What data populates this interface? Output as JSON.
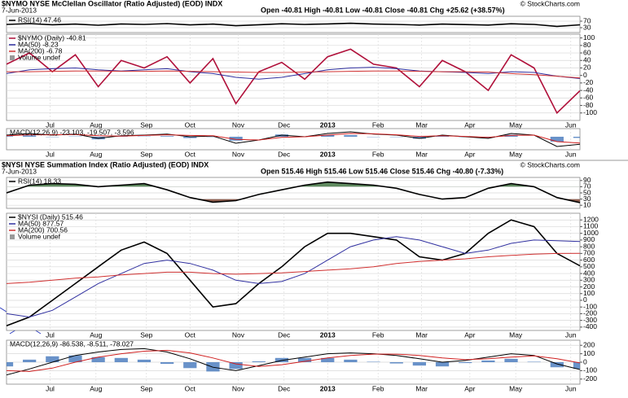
{
  "chart_data": [
    {
      "type": "line",
      "title": "$NYMO NYSE McClellan Oscillator (Ratio Adjusted) (EOD) INDX",
      "date": "7-Jun-2013",
      "ohlc": "Open -40.81 High -40.81 Low -40.81 Close -40.81 Chg +25.62 (+38.57%)",
      "source": "© StockCharts.com",
      "x": [
        0,
        1,
        2,
        3,
        4,
        5,
        6,
        7,
        8,
        9,
        10,
        11,
        12,
        13,
        14,
        15,
        16,
        17,
        18,
        19,
        20,
        21,
        22,
        23,
        24,
        25
      ],
      "xlim": [
        0,
        25
      ],
      "ylim": [
        0,
        100
      ],
      "yticks": [
        70,
        30
      ],
      "grid": true,
      "series": [
        {
          "name": "RSI(14) 47.46",
          "color": "#000000",
          "values": [
            50,
            55,
            48,
            52,
            45,
            53,
            50,
            55,
            47,
            52,
            42,
            48,
            54,
            50,
            53,
            57,
            52,
            50,
            46,
            52,
            49,
            46,
            54,
            50,
            38,
            47.46
          ]
        }
      ]
    },
    {
      "type": "line",
      "x": [
        0,
        1,
        2,
        3,
        4,
        5,
        6,
        7,
        8,
        9,
        10,
        11,
        12,
        13,
        14,
        15,
        16,
        17,
        18,
        19,
        20,
        21,
        22,
        23,
        24,
        25
      ],
      "xlim": [
        0,
        25
      ],
      "ylim": [
        -120,
        110
      ],
      "yticks": [
        100,
        80,
        60,
        40,
        20,
        0,
        -20,
        -40,
        -60,
        -80,
        -100
      ],
      "grid": true,
      "xticks": [
        {
          "value": 1.9,
          "label": "Jul"
        },
        {
          "value": 3.9,
          "label": "Aug"
        },
        {
          "value": 6.1,
          "label": "Sep"
        },
        {
          "value": 8,
          "label": "Oct"
        },
        {
          "value": 10.1,
          "label": "Nov"
        },
        {
          "value": 12.1,
          "label": "Dec"
        },
        {
          "value": 14,
          "label": "2013"
        },
        {
          "value": 16.2,
          "label": "Feb"
        },
        {
          "value": 18.1,
          "label": "Mar"
        },
        {
          "value": 20.2,
          "label": "Apr"
        },
        {
          "value": 22.2,
          "label": "May"
        },
        {
          "value": 24.6,
          "label": "Jun"
        }
      ],
      "series": [
        {
          "name": "$NYMO (Daily) -40.81",
          "color": "#b0103a",
          "values": [
            30,
            60,
            10,
            55,
            -30,
            40,
            20,
            50,
            -20,
            45,
            -75,
            10,
            35,
            -10,
            50,
            70,
            30,
            20,
            -30,
            40,
            10,
            -40,
            55,
            20,
            -100,
            -40.81
          ]
        },
        {
          "name": "MA(50) -8.23",
          "color": "#3030a0",
          "values": [
            5,
            15,
            18,
            20,
            15,
            12,
            15,
            18,
            10,
            5,
            -5,
            -10,
            -5,
            5,
            15,
            20,
            22,
            18,
            12,
            10,
            8,
            5,
            10,
            8,
            -2,
            -8.23
          ]
        },
        {
          "name": "MA(200) -6.78",
          "color": "#d03030",
          "values": [
            10,
            10,
            11,
            12,
            12,
            11,
            11,
            12,
            11,
            10,
            9,
            8,
            8,
            9,
            10,
            11,
            12,
            12,
            11,
            10,
            10,
            9,
            5,
            2,
            -2,
            -6.78
          ]
        }
      ],
      "volume_label": "Volume undef"
    },
    {
      "type": "line",
      "x": [
        0,
        1,
        2,
        3,
        4,
        5,
        6,
        7,
        8,
        9,
        10,
        11,
        12,
        13,
        14,
        15,
        16,
        17,
        18,
        19,
        20,
        21,
        22,
        23,
        24,
        25
      ],
      "xlim": [
        0,
        25
      ],
      "ylim": [
        -40,
        25
      ],
      "grid": true,
      "legend": "MACD(12,26,9) -23.103, -19.507, -3.596",
      "xticks": [
        {
          "value": 1.9,
          "label": "Jul"
        },
        {
          "value": 3.9,
          "label": "Aug"
        },
        {
          "value": 6.1,
          "label": "Sep"
        },
        {
          "value": 8,
          "label": "Oct"
        },
        {
          "value": 10.1,
          "label": "Nov"
        },
        {
          "value": 12.1,
          "label": "Dec"
        },
        {
          "value": 14,
          "label": "2013"
        },
        {
          "value": 16.2,
          "label": "Feb"
        },
        {
          "value": 18.1,
          "label": "Mar"
        },
        {
          "value": 20.2,
          "label": "Apr"
        },
        {
          "value": 22.2,
          "label": "May"
        },
        {
          "value": 24.6,
          "label": "Jun"
        }
      ],
      "series": [
        {
          "color": "#4f7fbf",
          "style": "bar",
          "values": [
            2,
            4,
            -1,
            1,
            -8,
            1,
            1,
            2,
            -4,
            -1,
            -12,
            0,
            7,
            0,
            5,
            5,
            -1,
            -1,
            -6,
            2,
            -1,
            -3,
            6,
            0,
            -15,
            -3.596
          ]
        },
        {
          "color": "#000000",
          "values": [
            5,
            10,
            5,
            8,
            -5,
            3,
            5,
            8,
            0,
            2,
            -20,
            -10,
            5,
            0,
            10,
            15,
            8,
            5,
            -5,
            5,
            0,
            -5,
            10,
            5,
            -30,
            -23.103
          ]
        },
        {
          "color": "#d02020",
          "values": [
            3,
            6,
            6,
            7,
            3,
            2,
            4,
            6,
            4,
            3,
            -8,
            -10,
            -2,
            0,
            5,
            10,
            9,
            6,
            1,
            3,
            1,
            -2,
            4,
            5,
            -15,
            -19.507
          ]
        }
      ]
    },
    {
      "type": "line",
      "title": "$NYSI NYSE Summation Index (Ratio Adjusted) (EOD) INDX",
      "date": "7-Jun-2013",
      "ohlc": "Open 515.46 High 515.46 Low 515.46 Close 515.46 Chg -40.80 (-7.33%)",
      "source": "© StockCharts.com",
      "x": [
        0,
        1,
        2,
        3,
        4,
        5,
        6,
        7,
        8,
        9,
        10,
        11,
        12,
        13,
        14,
        15,
        16,
        17,
        18,
        19,
        20,
        21,
        22,
        23,
        24,
        25
      ],
      "xlim": [
        0,
        25
      ],
      "ylim": [
        0,
        100
      ],
      "yticks": [
        90,
        70,
        50,
        30,
        10
      ],
      "grid": true,
      "fill_colors": [
        "#5f8a5f",
        "#8f5f50"
      ],
      "series": [
        {
          "name": "RSI(14) 18.33",
          "color": "#000000",
          "values": [
            50,
            75,
            80,
            78,
            70,
            75,
            80,
            60,
            35,
            20,
            25,
            45,
            60,
            75,
            85,
            80,
            75,
            65,
            45,
            30,
            35,
            65,
            80,
            70,
            35,
            18.33
          ]
        }
      ]
    },
    {
      "type": "line",
      "x": [
        0,
        1,
        2,
        3,
        4,
        5,
        6,
        7,
        8,
        9,
        10,
        11,
        12,
        13,
        14,
        15,
        16,
        17,
        18,
        19,
        20,
        21,
        22,
        23,
        24,
        25
      ],
      "xlim": [
        0,
        25
      ],
      "ylim": [
        -450,
        1300
      ],
      "yticks": [
        1200,
        1100,
        1000,
        900,
        800,
        700,
        600,
        500,
        400,
        300,
        200,
        100,
        0,
        -100,
        -200,
        -300,
        -400
      ],
      "grid": true,
      "xticks": [
        {
          "value": 1.9,
          "label": "Jul"
        },
        {
          "value": 3.9,
          "label": "Aug"
        },
        {
          "value": 6.1,
          "label": "Sep"
        },
        {
          "value": 8,
          "label": "Oct"
        },
        {
          "value": 10.1,
          "label": "Nov"
        },
        {
          "value": 12.1,
          "label": "Dec"
        },
        {
          "value": 14,
          "label": "2013"
        },
        {
          "value": 16.2,
          "label": "Feb"
        },
        {
          "value": 18.1,
          "label": "Mar"
        },
        {
          "value": 20.2,
          "label": "Apr"
        },
        {
          "value": 22.2,
          "label": "May"
        },
        {
          "value": 24.6,
          "label": "Jun"
        }
      ],
      "series": [
        {
          "name": "$NYSI (Daily) 515.46",
          "color": "#000000",
          "values": [
            -380,
            -250,
            0,
            250,
            500,
            750,
            870,
            700,
            300,
            -100,
            -50,
            250,
            500,
            800,
            1000,
            1000,
            950,
            900,
            650,
            600,
            700,
            1000,
            1200,
            1100,
            700,
            515.46
          ]
        },
        {
          "name": "MA(50) 877.57",
          "color": "#3030a0",
          "values": [
            -200,
            -250,
            -150,
            50,
            250,
            400,
            550,
            600,
            550,
            450,
            300,
            250,
            280,
            400,
            600,
            800,
            900,
            950,
            900,
            800,
            700,
            750,
            850,
            900,
            890,
            877.57
          ]
        },
        {
          "name": "MA(200) 700.56",
          "color": "#d03030",
          "values": [
            250,
            270,
            300,
            330,
            350,
            380,
            400,
            420,
            420,
            400,
            390,
            400,
            410,
            430,
            450,
            470,
            500,
            550,
            580,
            600,
            620,
            650,
            670,
            690,
            700,
            700.56
          ]
        }
      ],
      "volume_label": "Volume undef"
    },
    {
      "type": "line",
      "x": [
        0,
        1,
        2,
        3,
        4,
        5,
        6,
        7,
        8,
        9,
        10,
        11,
        12,
        13,
        14,
        15,
        16,
        17,
        18,
        19,
        20,
        21,
        22,
        23,
        24,
        25
      ],
      "xlim": [
        0,
        25
      ],
      "ylim": [
        -260,
        260
      ],
      "yticks": [
        200,
        100,
        0,
        -100,
        -200
      ],
      "grid": true,
      "legend": "MACD(12,26,9) -86.538, -8.511, -78.027",
      "xticks": [
        {
          "value": 1.9,
          "label": "Jul"
        },
        {
          "value": 3.9,
          "label": "Aug"
        },
        {
          "value": 6.1,
          "label": "Sep"
        },
        {
          "value": 8,
          "label": "Oct"
        },
        {
          "value": 10.1,
          "label": "Nov"
        },
        {
          "value": 12.1,
          "label": "Dec"
        },
        {
          "value": 14,
          "label": "2013"
        },
        {
          "value": 16.2,
          "label": "Feb"
        },
        {
          "value": 18.1,
          "label": "Mar"
        },
        {
          "value": 20.2,
          "label": "Apr"
        },
        {
          "value": 22.2,
          "label": "May"
        },
        {
          "value": 24.6,
          "label": "Jun"
        }
      ],
      "series": [
        {
          "color": "#4f7fbf",
          "style": "bar",
          "values": [
            -50,
            30,
            70,
            80,
            60,
            50,
            30,
            -20,
            -70,
            -110,
            -80,
            10,
            50,
            50,
            50,
            30,
            5,
            -15,
            -40,
            -50,
            -10,
            20,
            40,
            5,
            -60,
            -78.027
          ]
        },
        {
          "color": "#000000",
          "values": [
            -150,
            -80,
            0,
            80,
            120,
            150,
            160,
            120,
            40,
            -60,
            -100,
            -40,
            20,
            60,
            100,
            110,
            100,
            80,
            40,
            0,
            20,
            60,
            100,
            80,
            -20,
            -86.538
          ]
        },
        {
          "color": "#d02020",
          "values": [
            -100,
            -110,
            -70,
            0,
            60,
            100,
            130,
            140,
            110,
            50,
            -20,
            -50,
            -30,
            10,
            50,
            80,
            95,
            95,
            80,
            50,
            30,
            40,
            60,
            75,
            40,
            -8.511
          ]
        }
      ]
    }
  ]
}
